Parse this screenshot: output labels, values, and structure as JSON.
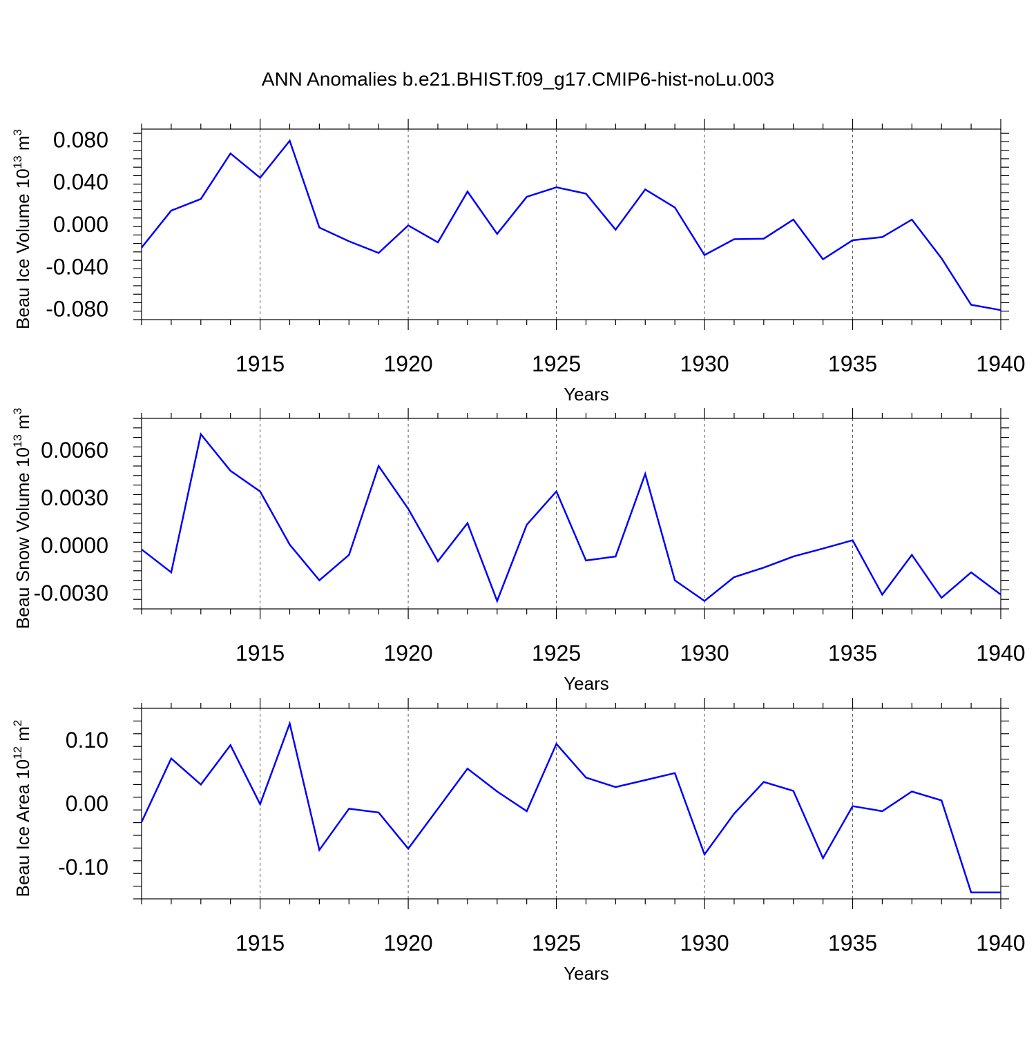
{
  "title": "ANN Anomalies b.e21.BHIST.f09_g17.CMIP6-hist-noLu.003",
  "line_color": "#0000ff",
  "chart_data": [
    {
      "type": "line",
      "ylabel_prefix": "Beau Ice Volume 10",
      "ylabel_exp": "13",
      "ylabel_unit": " m",
      "ylabel_unit_exp": "3",
      "xlabel": "Years",
      "xlim": [
        1911,
        1940
      ],
      "ylim": [
        -0.09,
        0.09
      ],
      "yticks": [
        -0.08,
        -0.04,
        0.0,
        0.04,
        0.08
      ],
      "ytick_labels": [
        "-0.080",
        "-0.040",
        "0.000",
        "0.040",
        "0.080"
      ],
      "xticks": [
        1915,
        1920,
        1925,
        1930,
        1935,
        1940
      ],
      "xtick_labels": [
        "1915",
        "1920",
        "1925",
        "1930",
        "1935",
        "1940"
      ],
      "grid": "vertical dashed at major x ticks",
      "x": [
        1911,
        1912,
        1913,
        1914,
        1915,
        1916,
        1917,
        1918,
        1919,
        1920,
        1921,
        1922,
        1923,
        1924,
        1925,
        1926,
        1927,
        1928,
        1929,
        1930,
        1931,
        1932,
        1933,
        1934,
        1935,
        1936,
        1937,
        1938,
        1939,
        1940
      ],
      "y": [
        -0.022,
        0.013,
        0.024,
        0.067,
        0.044,
        0.079,
        -0.003,
        -0.016,
        -0.027,
        -0.001,
        -0.017,
        0.031,
        -0.009,
        0.026,
        0.035,
        0.029,
        -0.005,
        0.033,
        0.016,
        -0.029,
        -0.014,
        -0.0135,
        0.0045,
        -0.033,
        -0.015,
        -0.012,
        0.0045,
        -0.032,
        -0.076,
        -0.081
      ]
    },
    {
      "type": "line",
      "ylabel_prefix": "Beau Snow Volume 10",
      "ylabel_exp": "13",
      "ylabel_unit": " m",
      "ylabel_unit_exp": "3",
      "xlabel": "Years",
      "xlim": [
        1911,
        1940
      ],
      "ylim": [
        -0.004,
        0.008
      ],
      "yticks": [
        -0.003,
        0.0,
        0.003,
        0.006
      ],
      "ytick_labels": [
        "-0.0030",
        "0.0000",
        "0.0030",
        "0.0060"
      ],
      "xticks": [
        1915,
        1920,
        1925,
        1930,
        1935,
        1940
      ],
      "xtick_labels": [
        "1915",
        "1920",
        "1925",
        "1930",
        "1935",
        "1940"
      ],
      "grid": "vertical dashed at major x ticks",
      "x": [
        1911,
        1912,
        1913,
        1914,
        1915,
        1916,
        1917,
        1918,
        1919,
        1920,
        1921,
        1922,
        1923,
        1924,
        1925,
        1926,
        1927,
        1928,
        1929,
        1930,
        1931,
        1932,
        1933,
        1934,
        1935,
        1936,
        1937,
        1938,
        1939,
        1940
      ],
      "y": [
        -0.00025,
        -0.0017,
        0.007,
        0.0047,
        0.0034,
        5e-05,
        -0.0022,
        -0.0006,
        0.005,
        0.0023,
        -0.001,
        0.0014,
        -0.0035,
        0.0013,
        0.0034,
        -0.00095,
        -0.0007,
        0.0045,
        -0.0022,
        -0.0035,
        -0.002,
        -0.0014,
        -0.0007,
        -0.0002,
        0.00032,
        -0.0031,
        -0.0006,
        -0.0033,
        -0.0017,
        -0.0031
      ]
    },
    {
      "type": "line",
      "ylabel_prefix": "Beau Ice Area 10",
      "ylabel_exp": "12",
      "ylabel_unit": " m",
      "ylabel_unit_exp": "2",
      "xlabel": "Years",
      "xlim": [
        1911,
        1940
      ],
      "ylim": [
        -0.15,
        0.15
      ],
      "yticks": [
        -0.1,
        0.0,
        0.1
      ],
      "ytick_labels": [
        "-0.10",
        "0.00",
        "0.10"
      ],
      "xticks": [
        1915,
        1920,
        1925,
        1930,
        1935,
        1940
      ],
      "xtick_labels": [
        "1915",
        "1920",
        "1925",
        "1930",
        "1935",
        "1940"
      ],
      "grid": "vertical dashed at major x ticks",
      "x": [
        1911,
        1912,
        1913,
        1914,
        1915,
        1916,
        1917,
        1918,
        1919,
        1920,
        1921,
        1922,
        1923,
        1924,
        1925,
        1926,
        1927,
        1928,
        1929,
        1930,
        1931,
        1932,
        1933,
        1934,
        1935,
        1936,
        1937,
        1938,
        1939,
        1940
      ],
      "y": [
        -0.029,
        0.071,
        0.03,
        0.092,
        -0.001,
        0.126,
        -0.073,
        -0.008,
        -0.014,
        -0.071,
        -0.008,
        0.055,
        0.019,
        -0.012,
        0.094,
        0.041,
        0.026,
        0.037,
        0.048,
        -0.08,
        -0.016,
        0.034,
        0.02,
        -0.086,
        -0.004,
        -0.012,
        0.019,
        0.005,
        -0.14,
        -0.14
      ]
    }
  ]
}
